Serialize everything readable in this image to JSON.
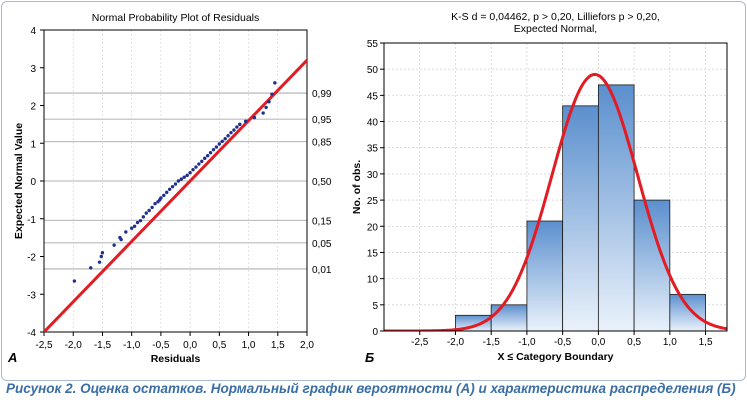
{
  "caption": "Рисунок 2. Оценка остатков. Нормальный график вероятности (А) и характеристика распределения (Б)",
  "colors": {
    "fit_line": "#e31b23",
    "points": "#1f2f8f",
    "bar_top": "#5b8fce",
    "bar_bottom": "#eaf2fb",
    "curve": "#e31b23",
    "caption": "#3a6ea5"
  },
  "chart_data": [
    {
      "type": "scatter",
      "panel_label": "А",
      "title": "Normal Probability Plot of Residuals",
      "xlabel": "Residuals",
      "ylabel": "Expected Normal Value",
      "xlim": [
        -2.5,
        2.0
      ],
      "ylim": [
        -4,
        4
      ],
      "xticks": [
        "-2,5",
        "-2,0",
        "-1,5",
        "-1,0",
        "-0,5",
        "0,0",
        "0,5",
        "1,0",
        "1,5",
        "2,0"
      ],
      "yticks": [
        "-4",
        "-3",
        "-2",
        "-1",
        "0",
        "1",
        "2",
        "3",
        "4"
      ],
      "right_axis": [
        {
          "label": "0,99",
          "z": 2.33
        },
        {
          "label": "0,95",
          "z": 1.64
        },
        {
          "label": "0,85",
          "z": 1.04
        },
        {
          "label": "0,50",
          "z": 0
        },
        {
          "label": "0,15",
          "z": -1.04
        },
        {
          "label": "0,05",
          "z": -1.64
        },
        {
          "label": "0,01",
          "z": -2.33
        }
      ],
      "grid": true,
      "fit_line": {
        "x": [
          -2.5,
          2.0
        ],
        "y": [
          -4.0,
          3.2
        ]
      },
      "points": {
        "x": [
          -1.98,
          -1.7,
          -1.55,
          -1.52,
          -1.5,
          -1.3,
          -1.2,
          -1.18,
          -1.1,
          -1.0,
          -0.95,
          -0.9,
          -0.85,
          -0.8,
          -0.75,
          -0.7,
          -0.65,
          -0.6,
          -0.55,
          -0.52,
          -0.5,
          -0.45,
          -0.4,
          -0.35,
          -0.3,
          -0.25,
          -0.2,
          -0.15,
          -0.1,
          -0.05,
          0.0,
          0.05,
          0.1,
          0.15,
          0.2,
          0.25,
          0.3,
          0.35,
          0.4,
          0.45,
          0.5,
          0.55,
          0.6,
          0.65,
          0.7,
          0.75,
          0.8,
          0.85,
          0.95,
          1.1,
          1.25,
          1.3,
          1.35,
          1.4,
          1.45
        ],
        "y": [
          -2.65,
          -2.3,
          -2.15,
          -2.0,
          -1.9,
          -1.7,
          -1.5,
          -1.55,
          -1.35,
          -1.25,
          -1.2,
          -1.1,
          -1.05,
          -0.95,
          -0.85,
          -0.78,
          -0.7,
          -0.6,
          -0.55,
          -0.5,
          -0.45,
          -0.38,
          -0.3,
          -0.22,
          -0.15,
          -0.08,
          0.0,
          0.05,
          0.1,
          0.15,
          0.22,
          0.3,
          0.37,
          0.45,
          0.52,
          0.6,
          0.67,
          0.75,
          0.83,
          0.9,
          0.98,
          1.05,
          1.12,
          1.2,
          1.28,
          1.35,
          1.43,
          1.5,
          1.58,
          1.68,
          1.8,
          1.95,
          2.1,
          2.3,
          2.6
        ]
      }
    },
    {
      "type": "bar",
      "panel_label": "Б",
      "title": "K-S d = 0,04462, p > 0,20, Lilliefors p > 0,20,",
      "subtitle": "Expected Normal,",
      "xlabel": "X ≤ Category Boundary",
      "ylabel": "No. of obs.",
      "xlim": [
        -3.0,
        1.8
      ],
      "ylim": [
        0,
        55
      ],
      "xticks": [
        "-2,5",
        "-2,0",
        "-1,5",
        "-1,0",
        "-0,5",
        "0,0",
        "0,5",
        "1,0",
        "1,5"
      ],
      "yticks": [
        "0",
        "5",
        "10",
        "15",
        "20",
        "25",
        "30",
        "35",
        "40",
        "45",
        "50",
        "55"
      ],
      "grid": true,
      "bins": [
        {
          "from": -2.0,
          "to": -1.5,
          "value": 3
        },
        {
          "from": -1.5,
          "to": -1.0,
          "value": 5
        },
        {
          "from": -1.0,
          "to": -0.5,
          "value": 21
        },
        {
          "from": -0.5,
          "to": 0.0,
          "value": 43
        },
        {
          "from": 0.0,
          "to": 0.5,
          "value": 47
        },
        {
          "from": 0.5,
          "to": 1.0,
          "value": 25
        },
        {
          "from": 1.0,
          "to": 1.5,
          "value": 7
        }
      ],
      "normal_curve": {
        "mean": -0.05,
        "sd": 0.6,
        "peak": 49
      }
    }
  ]
}
